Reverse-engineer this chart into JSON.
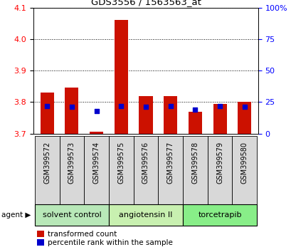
{
  "title": "GDS3556 / 1563563_at",
  "samples": [
    "GSM399572",
    "GSM399573",
    "GSM399574",
    "GSM399575",
    "GSM399576",
    "GSM399577",
    "GSM399578",
    "GSM399579",
    "GSM399580"
  ],
  "groups": [
    {
      "label": "solvent control",
      "indices": [
        0,
        1,
        2
      ]
    },
    {
      "label": "angiotensin II",
      "indices": [
        3,
        4,
        5
      ]
    },
    {
      "label": "torcetrapib",
      "indices": [
        6,
        7,
        8
      ]
    }
  ],
  "group_colors": [
    "#b8e8b8",
    "#c8f0b0",
    "#88ee88"
  ],
  "sample_box_color": "#d8d8d8",
  "baseline": 3.7,
  "ylim": [
    3.7,
    4.1
  ],
  "yticks_left": [
    3.7,
    3.8,
    3.9,
    4.0,
    4.1
  ],
  "yticks_right": [
    0,
    25,
    50,
    75,
    100
  ],
  "transformed_counts": [
    3.83,
    3.845,
    3.705,
    4.06,
    3.82,
    3.82,
    3.77,
    3.795,
    3.8
  ],
  "percentile_ranks": [
    22,
    21,
    18,
    22,
    21,
    22,
    19,
    22,
    21
  ],
  "bar_color": "#cc1100",
  "dot_color": "#0000cc",
  "legend_red": "transformed count",
  "legend_blue": "percentile rank within the sample",
  "agent_label": "agent"
}
